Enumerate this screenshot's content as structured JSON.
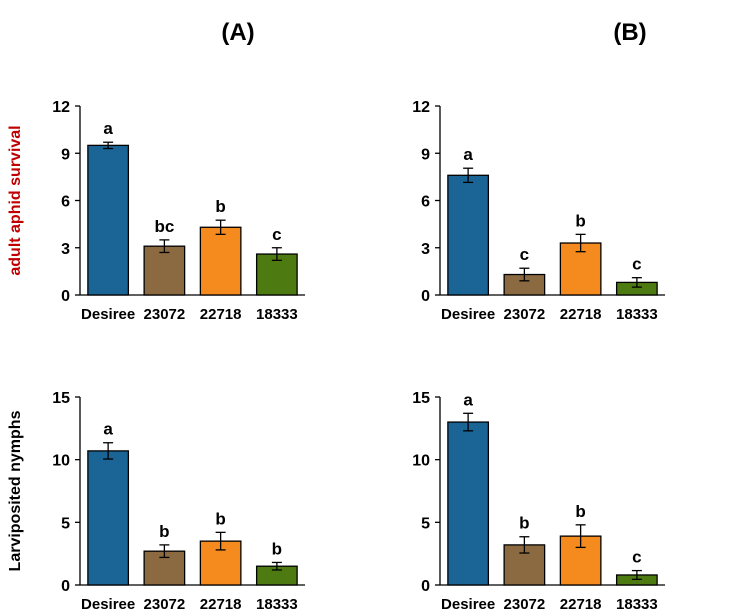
{
  "panel_labels": [
    "(A)",
    "(B)"
  ],
  "chart_data": [
    {
      "type": "bar",
      "panel": "(A)",
      "ylabel": "adult aphid survival",
      "ylabel_color": "#c00000",
      "categories": [
        "Desiree",
        "23072",
        "22718",
        "18333"
      ],
      "values": [
        9.5,
        3.1,
        4.3,
        2.6
      ],
      "errors": [
        0.2,
        0.4,
        0.45,
        0.4
      ],
      "significance": [
        "a",
        "bc",
        "b",
        "c"
      ],
      "colors": [
        "#1a6496",
        "#8b6a42",
        "#f58a1f",
        "#4e7a12"
      ],
      "ylim": [
        0,
        12
      ],
      "yticks": [
        0,
        3,
        6,
        9,
        12
      ]
    },
    {
      "type": "bar",
      "panel": "(B)",
      "ylabel": "",
      "ylabel_color": "#000000",
      "categories": [
        "Desiree",
        "23072",
        "22718",
        "18333"
      ],
      "values": [
        7.6,
        1.3,
        3.3,
        0.8
      ],
      "errors": [
        0.45,
        0.4,
        0.55,
        0.3
      ],
      "significance": [
        "a",
        "c",
        "b",
        "c"
      ],
      "colors": [
        "#1a6496",
        "#8b6a42",
        "#f58a1f",
        "#4e7a12"
      ],
      "ylim": [
        0,
        12
      ],
      "yticks": [
        0,
        3,
        6,
        9,
        12
      ]
    },
    {
      "type": "bar",
      "panel": "(A)",
      "ylabel": "Larviposited nymphs",
      "ylabel_color": "#000000",
      "categories": [
        "Desiree",
        "23072",
        "22718",
        "18333"
      ],
      "values": [
        10.7,
        2.7,
        3.5,
        1.5
      ],
      "errors": [
        0.65,
        0.5,
        0.7,
        0.3
      ],
      "significance": [
        "a",
        "b",
        "b",
        "b"
      ],
      "colors": [
        "#1a6496",
        "#8b6a42",
        "#f58a1f",
        "#4e7a12"
      ],
      "ylim": [
        0,
        15
      ],
      "yticks": [
        0,
        5,
        10,
        15
      ]
    },
    {
      "type": "bar",
      "panel": "(B)",
      "ylabel": "",
      "ylabel_color": "#000000",
      "categories": [
        "Desiree",
        "23072",
        "22718",
        "18333"
      ],
      "values": [
        13.0,
        3.2,
        3.9,
        0.8
      ],
      "errors": [
        0.7,
        0.65,
        0.9,
        0.35
      ],
      "significance": [
        "a",
        "b",
        "b",
        "c"
      ],
      "colors": [
        "#1a6496",
        "#8b6a42",
        "#f58a1f",
        "#4e7a12"
      ],
      "ylim": [
        0,
        15
      ],
      "yticks": [
        0,
        5,
        10,
        15
      ]
    }
  ]
}
